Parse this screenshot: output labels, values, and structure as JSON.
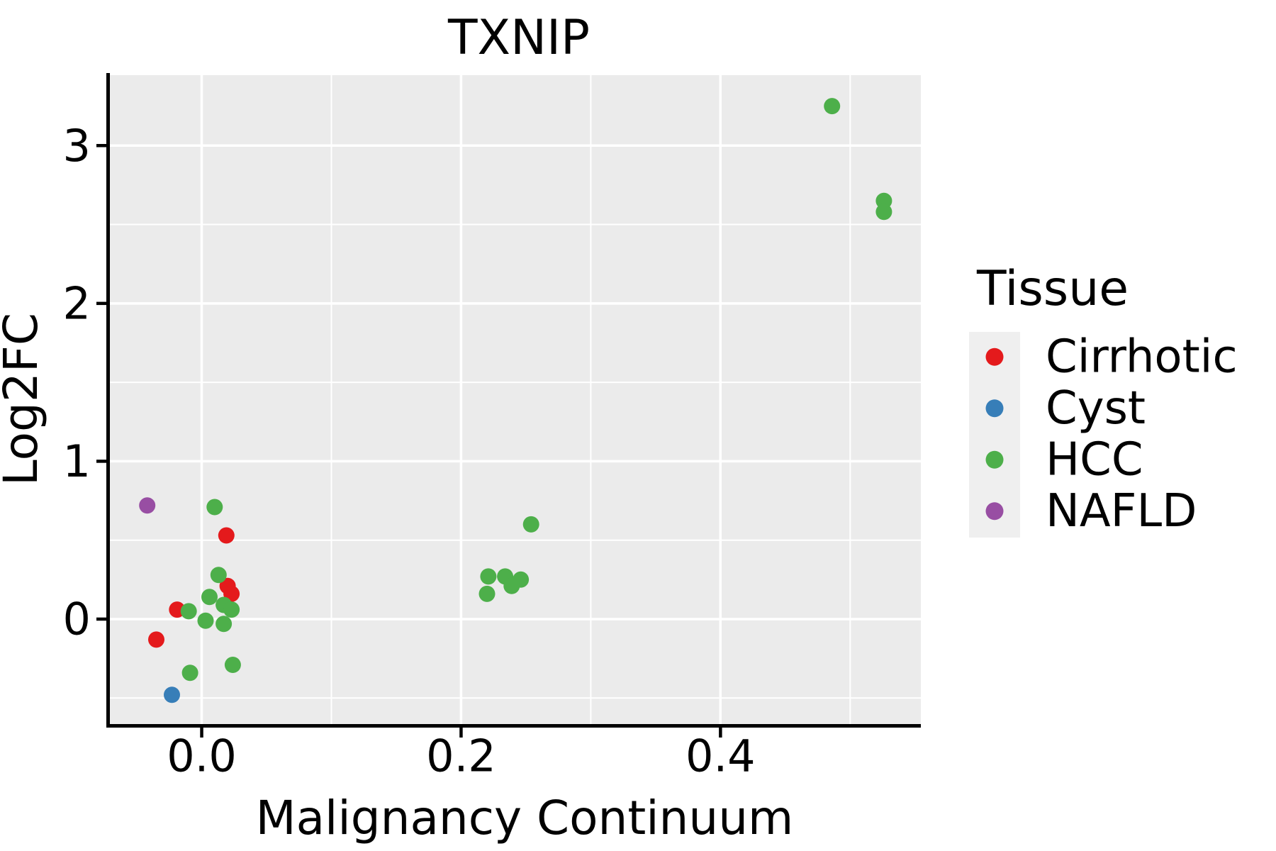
{
  "title": "TXNIP",
  "colors": {
    "panel_background": "#EBEBEB",
    "gridline": "#FFFFFF",
    "axis_line": "#000000",
    "text": "#000000",
    "legend_key_background": "#EFEFEF",
    "cirrhotic": "#E41A1C",
    "cyst": "#377EB8",
    "hcc": "#4DAF4A",
    "nafld": "#984EA3"
  },
  "chart_data": {
    "type": "scatter",
    "title": "TXNIP",
    "xlabel": "Malignancy Continuum",
    "ylabel": "Log2FC",
    "xlim": [
      -0.0708,
      0.5545
    ],
    "ylim": [
      -0.665,
      3.446
    ],
    "grid": true,
    "x_major_ticks": [
      0.0,
      0.2,
      0.4
    ],
    "x_tick_labels": [
      "0.0",
      "0.2",
      "0.4"
    ],
    "x_minor_ticks": [
      0.1,
      0.3,
      0.5
    ],
    "y_major_ticks": [
      0,
      1,
      2,
      3
    ],
    "y_tick_labels": [
      "0",
      "1",
      "2",
      "3"
    ],
    "y_minor_ticks": [
      -0.5,
      0.5,
      1.5,
      2.5
    ],
    "legend_title": "Tissue",
    "legend_position": "right",
    "series": [
      {
        "name": "Cirrhotic",
        "color": "#E41A1C",
        "points": [
          [
            -0.035,
            -0.13
          ],
          [
            -0.019,
            0.06
          ],
          [
            0.019,
            0.53
          ],
          [
            0.02,
            0.21
          ],
          [
            0.023,
            0.16
          ]
        ]
      },
      {
        "name": "Cyst",
        "color": "#377EB8",
        "points": [
          [
            -0.023,
            -0.48
          ]
        ]
      },
      {
        "name": "HCC",
        "color": "#4DAF4A",
        "points": [
          [
            0.01,
            0.71
          ],
          [
            0.013,
            0.28
          ],
          [
            0.006,
            0.14
          ],
          [
            0.017,
            0.09
          ],
          [
            0.023,
            0.06
          ],
          [
            0.003,
            -0.01
          ],
          [
            0.017,
            -0.03
          ],
          [
            -0.01,
            0.05
          ],
          [
            -0.009,
            -0.34
          ],
          [
            0.024,
            -0.29
          ],
          [
            0.221,
            0.27
          ],
          [
            0.234,
            0.27
          ],
          [
            0.246,
            0.25
          ],
          [
            0.239,
            0.21
          ],
          [
            0.22,
            0.16
          ],
          [
            0.254,
            0.6
          ],
          [
            0.486,
            3.25
          ],
          [
            0.526,
            2.65
          ],
          [
            0.526,
            2.58
          ]
        ]
      },
      {
        "name": "NAFLD",
        "color": "#984EA3",
        "points": [
          [
            -0.042,
            0.72
          ]
        ]
      }
    ]
  }
}
